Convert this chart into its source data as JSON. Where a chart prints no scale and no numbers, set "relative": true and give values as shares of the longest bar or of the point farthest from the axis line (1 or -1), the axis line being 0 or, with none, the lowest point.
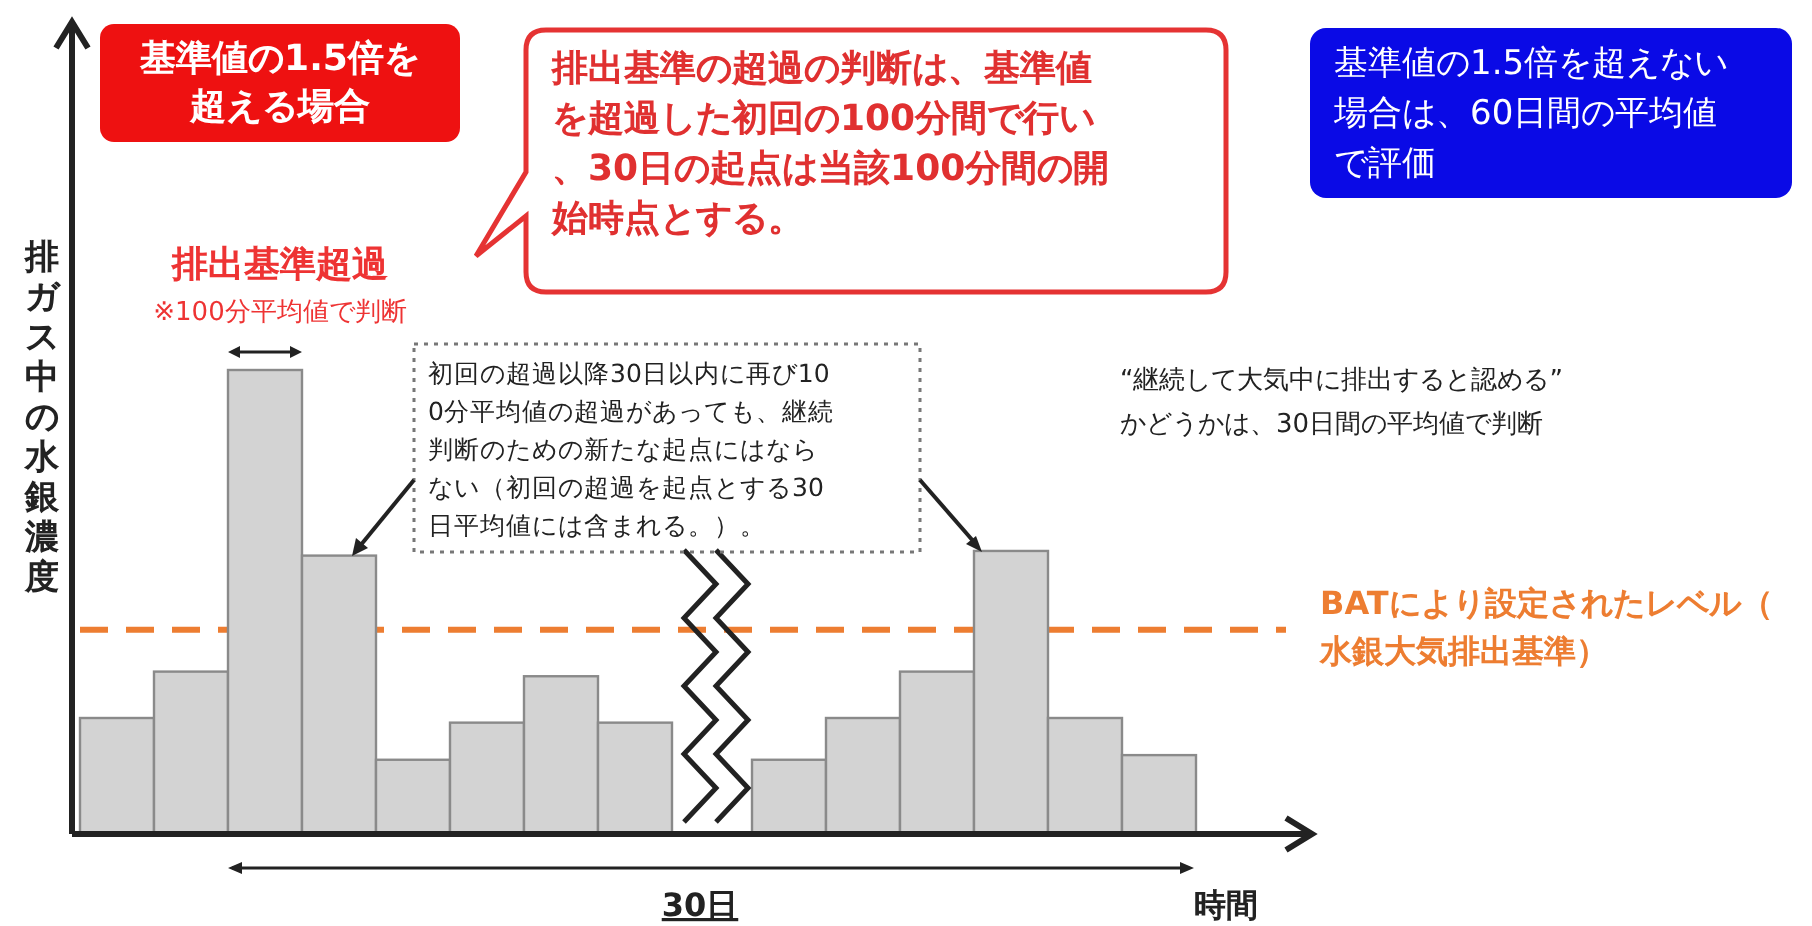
{
  "chart_data": {
    "type": "bar",
    "relative": true,
    "categories": [
      null,
      null,
      null,
      null,
      null,
      null,
      null,
      null,
      null,
      null,
      null,
      null,
      null,
      null
    ],
    "values": [
      0.25,
      0.35,
      1,
      0.6,
      0.16,
      0.24,
      0.34,
      0.24,
      0.16,
      0.25,
      0.35,
      0.61,
      0.25,
      0.17
    ],
    "color": "#d3d3d3",
    "ylabel": "排ガス中の水銀濃度",
    "xlabel": "時間",
    "ref_lines": [
      {
        "axis": "y",
        "value": 0.44,
        "label": "BATにより設定されたレベル（水銀大気排出基準）",
        "color": "#ed7d31",
        "line_style": "dashed"
      }
    ],
    "annotations": [
      "基準値の1.5倍を超える場合",
      "排出基準の超過の判断は、基準値を超過した初回の100分間で行い、30日の起点は当該100分間の開始時点とする。",
      "基準値の1.5倍を超えない場合は、60日間の平均値で評価",
      "排出基準超過",
      "※100分平均値で判断",
      "初回の超過以降30日以内に再び100分平均値の超過があっても、継続判断のための新たな起点にはならない（初回の超過を起点とする30日平均値には含まれる。）。",
      "“継続して大気中に排出すると認める”\nかどうかは、30日間の平均値で判断",
      "30日"
    ]
  }
}
